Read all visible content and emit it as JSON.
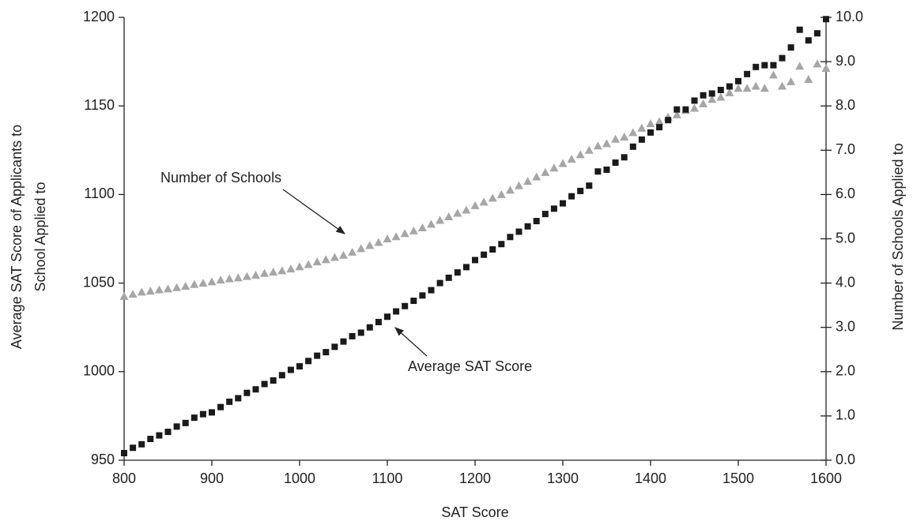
{
  "chart_data": {
    "type": "scatter",
    "xlabel": "SAT Score",
    "ylabel": [
      "Average SAT Score of Applicants to",
      "School Applied to"
    ],
    "y2label": "Number of Schools Applied to",
    "xlim": [
      800,
      1600
    ],
    "xticks": [
      800,
      900,
      1000,
      1100,
      1200,
      1300,
      1400,
      1500,
      1600
    ],
    "ylim": [
      950,
      1200
    ],
    "yticks": [
      950,
      1000,
      1050,
      1100,
      1150,
      1200
    ],
    "y2lim": [
      0,
      10
    ],
    "y2ticks": [
      {
        "value": 0,
        "label": "0.0"
      },
      {
        "value": 1,
        "label": "1.0"
      },
      {
        "value": 2,
        "label": "2.0"
      },
      {
        "value": 3,
        "label": "3.0"
      },
      {
        "value": 4,
        "label": "4.0"
      },
      {
        "value": 5,
        "label": "5.0"
      },
      {
        "value": 6,
        "label": "6.0"
      },
      {
        "value": 7,
        "label": "7.0"
      },
      {
        "value": 8,
        "label": "8.0"
      },
      {
        "value": 9,
        "label": "9.0"
      },
      {
        "value": 10,
        "label": "10.0"
      }
    ],
    "x": [
      800,
      810,
      820,
      830,
      840,
      850,
      860,
      870,
      880,
      890,
      900,
      910,
      920,
      930,
      940,
      950,
      960,
      970,
      980,
      990,
      1000,
      1010,
      1020,
      1030,
      1040,
      1050,
      1060,
      1070,
      1080,
      1090,
      1100,
      1110,
      1120,
      1130,
      1140,
      1150,
      1160,
      1170,
      1180,
      1190,
      1200,
      1210,
      1220,
      1230,
      1240,
      1250,
      1260,
      1270,
      1280,
      1290,
      1300,
      1310,
      1320,
      1330,
      1340,
      1350,
      1360,
      1370,
      1380,
      1390,
      1400,
      1410,
      1420,
      1430,
      1440,
      1450,
      1460,
      1470,
      1480,
      1490,
      1500,
      1510,
      1520,
      1530,
      1540,
      1550,
      1560,
      1570,
      1580,
      1590,
      1600
    ],
    "series": [
      {
        "marker": "triangle",
        "color": "#a6a6a6",
        "axis": "y2",
        "values": [
          3.7,
          3.75,
          3.8,
          3.82,
          3.85,
          3.87,
          3.9,
          3.93,
          3.97,
          4.0,
          4.03,
          4.07,
          4.1,
          4.12,
          4.15,
          4.18,
          4.22,
          4.25,
          4.28,
          4.32,
          4.37,
          4.42,
          4.48,
          4.53,
          4.58,
          4.63,
          4.7,
          4.78,
          4.85,
          4.92,
          5.0,
          5.05,
          5.12,
          5.18,
          5.25,
          5.33,
          5.42,
          5.5,
          5.58,
          5.65,
          5.75,
          5.83,
          5.92,
          6.0,
          6.1,
          6.2,
          6.3,
          6.4,
          6.5,
          6.6,
          6.7,
          6.8,
          6.9,
          7.0,
          7.1,
          7.15,
          7.25,
          7.3,
          7.4,
          7.5,
          7.6,
          7.65,
          7.75,
          7.8,
          7.9,
          7.95,
          8.05,
          8.15,
          8.2,
          8.3,
          8.4,
          8.4,
          8.45,
          8.4,
          8.7,
          8.45,
          8.55,
          8.9,
          8.6,
          8.95,
          8.85
        ]
      },
      {
        "marker": "square",
        "color": "#1a1a1a",
        "values": [
          954,
          957,
          959,
          962,
          964,
          966,
          969,
          971,
          974,
          976,
          977,
          980,
          983,
          985,
          988,
          990,
          993,
          995,
          998,
          1001,
          1003,
          1006,
          1009,
          1011,
          1014,
          1017,
          1020,
          1022,
          1025,
          1028,
          1031,
          1034,
          1037,
          1040,
          1043,
          1046,
          1050,
          1053,
          1056,
          1059,
          1063,
          1066,
          1069,
          1072,
          1076,
          1079,
          1082,
          1085,
          1089,
          1092,
          1095,
          1099,
          1102,
          1105,
          1113,
          1114,
          1118,
          1121,
          1127,
          1131,
          1135,
          1138,
          1142,
          1148,
          1148,
          1153,
          1156,
          1157,
          1159,
          1161,
          1164,
          1168,
          1172,
          1173,
          1173,
          1177,
          1183,
          1193,
          1187,
          1191,
          1199
        ]
      }
    ],
    "annotations": [
      "Number of Schools",
      "Average SAT Score"
    ]
  }
}
